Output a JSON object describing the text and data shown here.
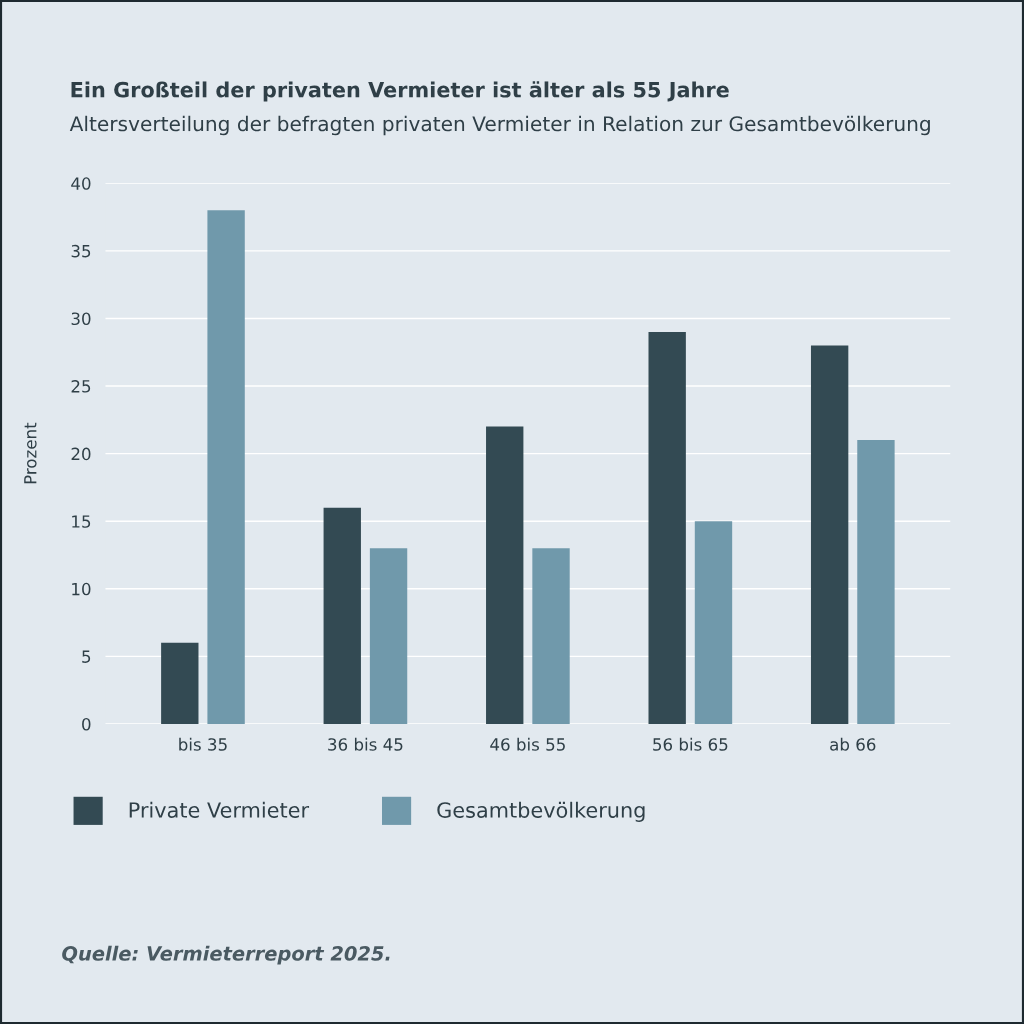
{
  "chart_data": {
    "type": "bar",
    "title": "Ein Großteil der privaten Vermieter ist älter als 55 Jahre",
    "subtitle": "Altersverteilung der befragten privaten Vermieter in Relation zur Gesamtbevölkerung",
    "ylabel": "Prozent",
    "categories": [
      "bis 35",
      "36 bis 45",
      "46 bis 55",
      "56 bis 65",
      "ab 66"
    ],
    "series": [
      {
        "name": "Private Vermieter",
        "color": "#334a53",
        "values": [
          6,
          16,
          22,
          29,
          28
        ]
      },
      {
        "name": "Gesamtbevölkerung",
        "color": "#7099ab",
        "values": [
          38,
          13,
          13,
          15,
          21
        ]
      }
    ],
    "ylim": [
      0,
      40
    ],
    "yticks": [
      0,
      5,
      10,
      15,
      20,
      25,
      30,
      35,
      40
    ],
    "grid": "y",
    "legend": "bottom",
    "annotations": [
      "Quelle: Vermieterreport 2025."
    ]
  }
}
